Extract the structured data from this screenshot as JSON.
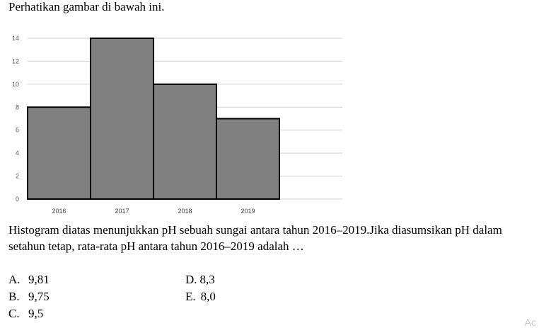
{
  "intro": "Perhatikan gambar di bawah ini.",
  "chart_data": {
    "type": "bar",
    "categories": [
      "2016",
      "2017",
      "2018",
      "2019"
    ],
    "values": [
      8,
      14,
      10,
      7
    ],
    "yticks": [
      0,
      2,
      4,
      6,
      8,
      10,
      12,
      14
    ],
    "ylim": [
      0,
      14
    ],
    "grid": true,
    "bar_color": "#808080",
    "edge_color": "#000000"
  },
  "question": "Histogram diatas menunjukkan pH sebuah sungai antara tahun 2016–2019.Jika diasumsikan pH dalam setahun tetap,  rata-rata pH antara tahun 2016–2019 adalah …",
  "options": [
    {
      "letter": "A.",
      "text": "9,81"
    },
    {
      "letter": "B.",
      "text": "9,75"
    },
    {
      "letter": "C.",
      "text": "9,5"
    },
    {
      "letter": "D.",
      "text": "8,3"
    },
    {
      "letter": "E.",
      "text": "8,0"
    }
  ],
  "watermark": "Ac"
}
